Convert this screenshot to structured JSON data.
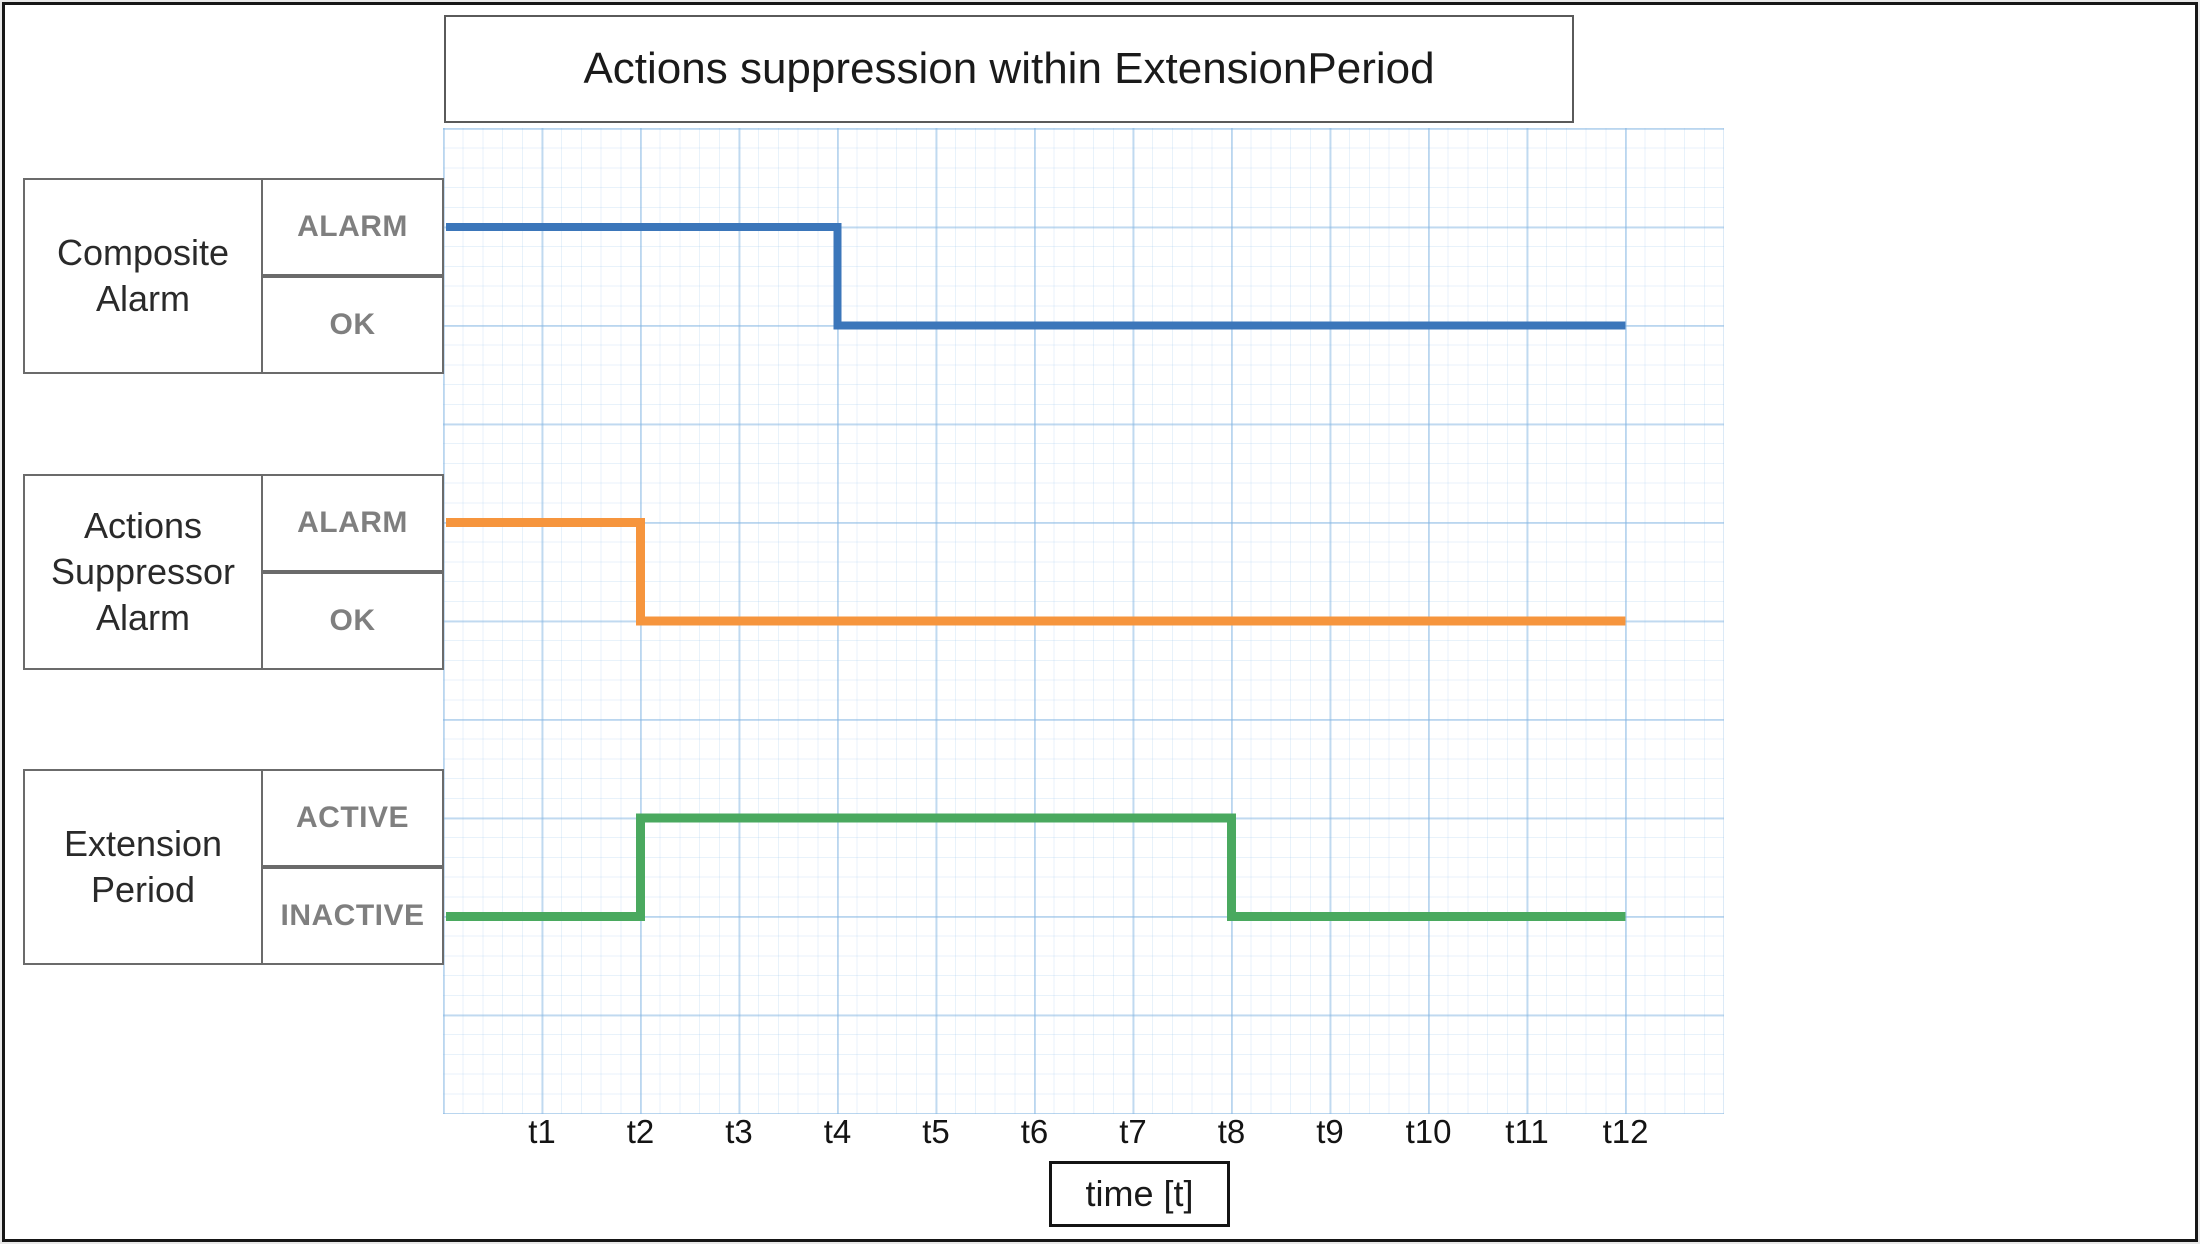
{
  "title": "Actions suppression within ExtensionPeriod",
  "rows": [
    {
      "name": "Composite Alarm",
      "high_label": "ALARM",
      "low_label": "OK",
      "color": "#3b76ba"
    },
    {
      "name": "Actions Suppressor Alarm",
      "high_label": "ALARM",
      "low_label": "OK",
      "color": "#f6953d"
    },
    {
      "name": "Extension Period",
      "high_label": "ACTIVE",
      "low_label": "INACTIVE",
      "color": "#4aa95f"
    }
  ],
  "x_axis": {
    "label": "time [t]",
    "ticks": [
      "t1",
      "t2",
      "t3",
      "t4",
      "t5",
      "t6",
      "t7",
      "t8",
      "t9",
      "t10",
      "t11",
      "t12"
    ]
  },
  "colors": {
    "composite_alarm_line": "#3b76ba",
    "actions_suppressor_line": "#f6953d",
    "extension_period_line": "#4aa95f",
    "grid_major": "#d3e5f3",
    "grid_minor": "#eaf2fa",
    "box_border": "#6b6b6b",
    "state_text": "#7f7f7f"
  },
  "chart_data": {
    "type": "line",
    "subtype": "step_timing",
    "title": "Actions suppression within ExtensionPeriod",
    "xlabel": "time [t]",
    "x_ticks": [
      "t1",
      "t2",
      "t3",
      "t4",
      "t5",
      "t6",
      "t7",
      "t8",
      "t9",
      "t10",
      "t11",
      "t12"
    ],
    "grid": true,
    "legend_position": "left-row-labels",
    "series": [
      {
        "name": "Composite Alarm",
        "color": "#3b76ba",
        "states": [
          "ALARM",
          "OK"
        ],
        "start_state": "high",
        "start_label": "ALARM",
        "transitions": [
          {
            "tick": "t4",
            "tick_index": 4,
            "to": "low",
            "to_label": "OK"
          }
        ]
      },
      {
        "name": "Actions Suppressor Alarm",
        "color": "#f6953d",
        "states": [
          "ALARM",
          "OK"
        ],
        "start_state": "high",
        "start_label": "ALARM",
        "transitions": [
          {
            "tick": "t2",
            "tick_index": 2,
            "to": "low",
            "to_label": "OK"
          }
        ]
      },
      {
        "name": "Extension Period",
        "color": "#4aa95f",
        "states": [
          "ACTIVE",
          "INACTIVE"
        ],
        "start_state": "low",
        "start_label": "INACTIVE",
        "transitions": [
          {
            "tick": "t2",
            "tick_index": 2,
            "to": "high",
            "to_label": "ACTIVE"
          },
          {
            "tick": "t8",
            "tick_index": 8,
            "to": "low",
            "to_label": "INACTIVE"
          }
        ]
      }
    ]
  }
}
